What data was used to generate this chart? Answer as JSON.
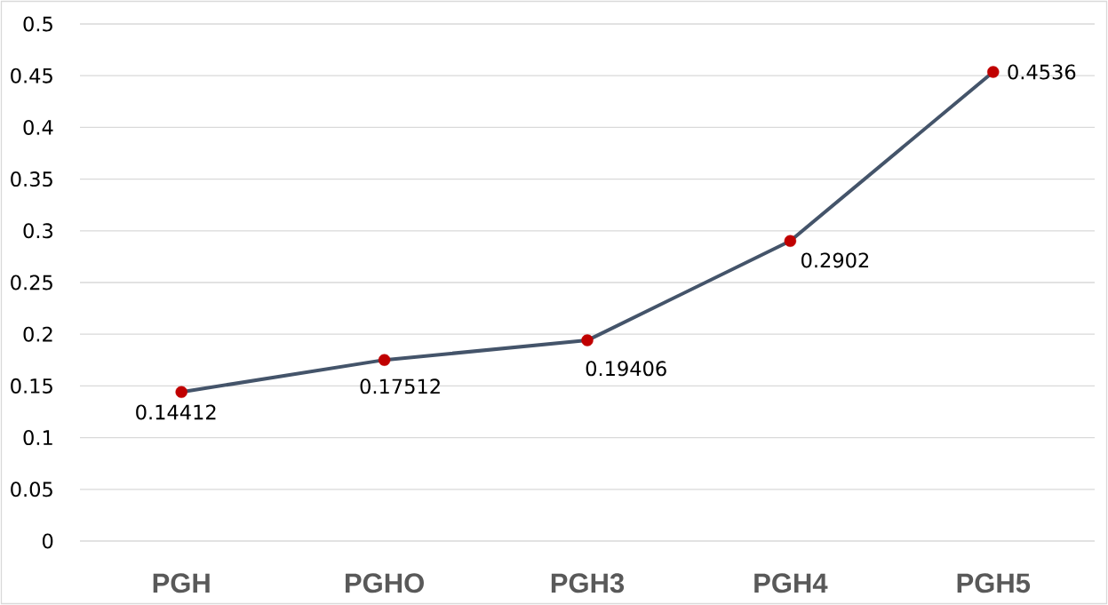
{
  "chart_data": {
    "type": "line",
    "categories": [
      "PGH",
      "PGHO",
      "PGH3",
      "PGH4",
      "PGH5"
    ],
    "values": [
      0.14412,
      0.17512,
      0.19406,
      0.2902,
      0.4536
    ],
    "color": "#44546a",
    "colors": [
      "#c00000",
      "#c00000",
      "#c00000",
      "#c00000",
      "#c00000"
    ],
    "ylim": [
      0,
      0.5
    ],
    "yticks": [
      0,
      0.05,
      0.1,
      0.15,
      0.2,
      0.25,
      0.3,
      0.35,
      0.4,
      0.45,
      0.5
    ],
    "grid": "y",
    "marker": "circle",
    "line_style": "solid",
    "data_labels": true
  }
}
